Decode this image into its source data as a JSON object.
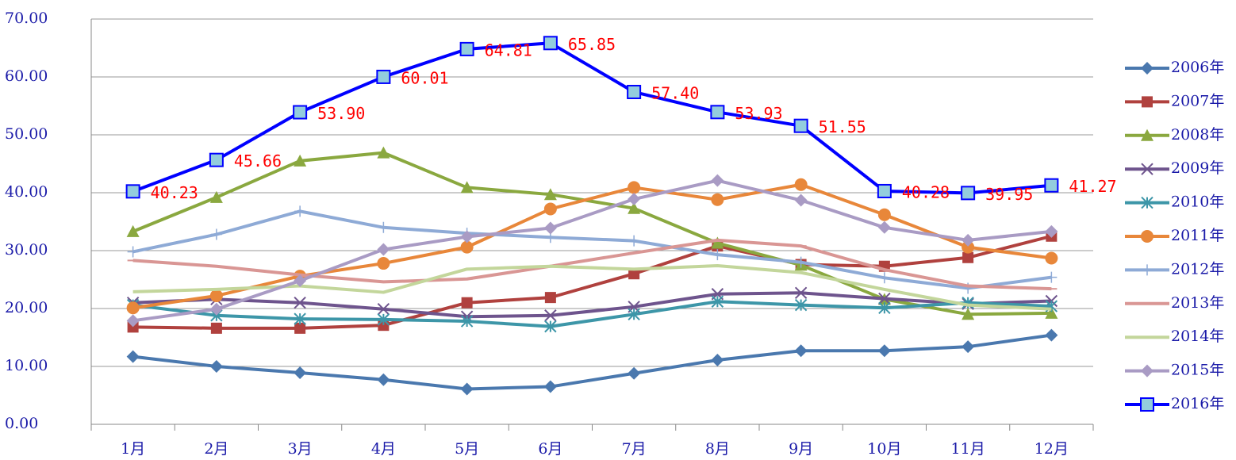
{
  "chart_data": {
    "type": "line",
    "categories": [
      "1月",
      "2月",
      "3月",
      "4月",
      "5月",
      "6月",
      "7月",
      "8月",
      "9月",
      "10月",
      "11月",
      "12月"
    ],
    "ylim": [
      0,
      70
    ],
    "yticks": [
      {
        "value": 0,
        "label": "0.00"
      },
      {
        "value": 10,
        "label": "10.00"
      },
      {
        "value": 20,
        "label": "20.00"
      },
      {
        "value": 30,
        "label": "30.00"
      },
      {
        "value": 40,
        "label": "40.00"
      },
      {
        "value": 50,
        "label": "50.00"
      },
      {
        "value": 60,
        "label": "60.00"
      },
      {
        "value": 70,
        "label": "70.00"
      }
    ],
    "grid": true,
    "legend": "right",
    "series": [
      {
        "name": "2006年",
        "color": "#4a78ae",
        "marker": "diamond",
        "values": [
          11.7,
          10.0,
          8.9,
          7.7,
          6.1,
          6.5,
          8.8,
          11.1,
          12.7,
          12.7,
          13.4,
          15.4
        ]
      },
      {
        "name": "2007年",
        "color": "#b0413e",
        "marker": "square",
        "values": [
          16.8,
          16.6,
          16.6,
          17.1,
          21.0,
          21.9,
          26.0,
          30.8,
          27.6,
          27.3,
          28.8,
          32.5
        ]
      },
      {
        "name": "2008年",
        "color": "#8aa83f",
        "marker": "triangle",
        "values": [
          33.3,
          39.2,
          45.5,
          46.9,
          40.9,
          39.7,
          37.3,
          31.3,
          27.5,
          21.6,
          19.0,
          19.2
        ]
      },
      {
        "name": "2009年",
        "color": "#6e548d",
        "marker": "x",
        "values": [
          21.0,
          21.6,
          21.0,
          19.9,
          18.6,
          18.8,
          20.3,
          22.5,
          22.7,
          21.7,
          20.8,
          21.3
        ]
      },
      {
        "name": "2010年",
        "color": "#3d96a8",
        "marker": "star",
        "values": [
          20.6,
          18.8,
          18.2,
          18.1,
          17.8,
          16.9,
          19.0,
          21.2,
          20.6,
          20.1,
          21.0,
          20.4
        ]
      },
      {
        "name": "2011年",
        "color": "#e8873a",
        "marker": "circle",
        "values": [
          20.1,
          22.2,
          25.6,
          27.8,
          30.6,
          37.2,
          40.9,
          38.8,
          41.4,
          36.2,
          30.6,
          28.7
        ]
      },
      {
        "name": "2012年",
        "color": "#8eaad6",
        "marker": "plus",
        "values": [
          29.8,
          32.8,
          36.8,
          34.0,
          33.0,
          32.3,
          31.7,
          29.3,
          28.0,
          25.3,
          23.5,
          25.4
        ]
      },
      {
        "name": "2013年",
        "color": "#d99694",
        "marker": "dash",
        "values": [
          28.3,
          27.3,
          25.8,
          24.6,
          25.1,
          27.3,
          29.6,
          31.8,
          30.8,
          26.7,
          23.9,
          23.4
        ]
      },
      {
        "name": "2014年",
        "color": "#c3d69b",
        "marker": "none",
        "values": [
          22.9,
          23.3,
          23.9,
          22.8,
          26.8,
          27.3,
          26.8,
          27.4,
          26.2,
          23.3,
          20.6,
          19.9
        ]
      },
      {
        "name": "2015年",
        "color": "#a99bc4",
        "marker": "diamond",
        "values": [
          17.9,
          19.9,
          24.8,
          30.2,
          32.4,
          33.9,
          38.9,
          42.1,
          38.7,
          34.0,
          31.8,
          33.3
        ]
      },
      {
        "name": "2016年",
        "color": "#0000ff",
        "marker": "bigsquare",
        "values": [
          40.23,
          45.66,
          53.9,
          60.01,
          64.81,
          65.85,
          57.4,
          53.93,
          51.55,
          40.28,
          39.95,
          41.27
        ],
        "value_labels": [
          "40.23",
          "45.66",
          "53.90",
          "60.01",
          "64.81",
          "65.85",
          "57.40",
          "53.93",
          "51.55",
          "40.28",
          "39.95",
          "41.27"
        ]
      }
    ]
  }
}
